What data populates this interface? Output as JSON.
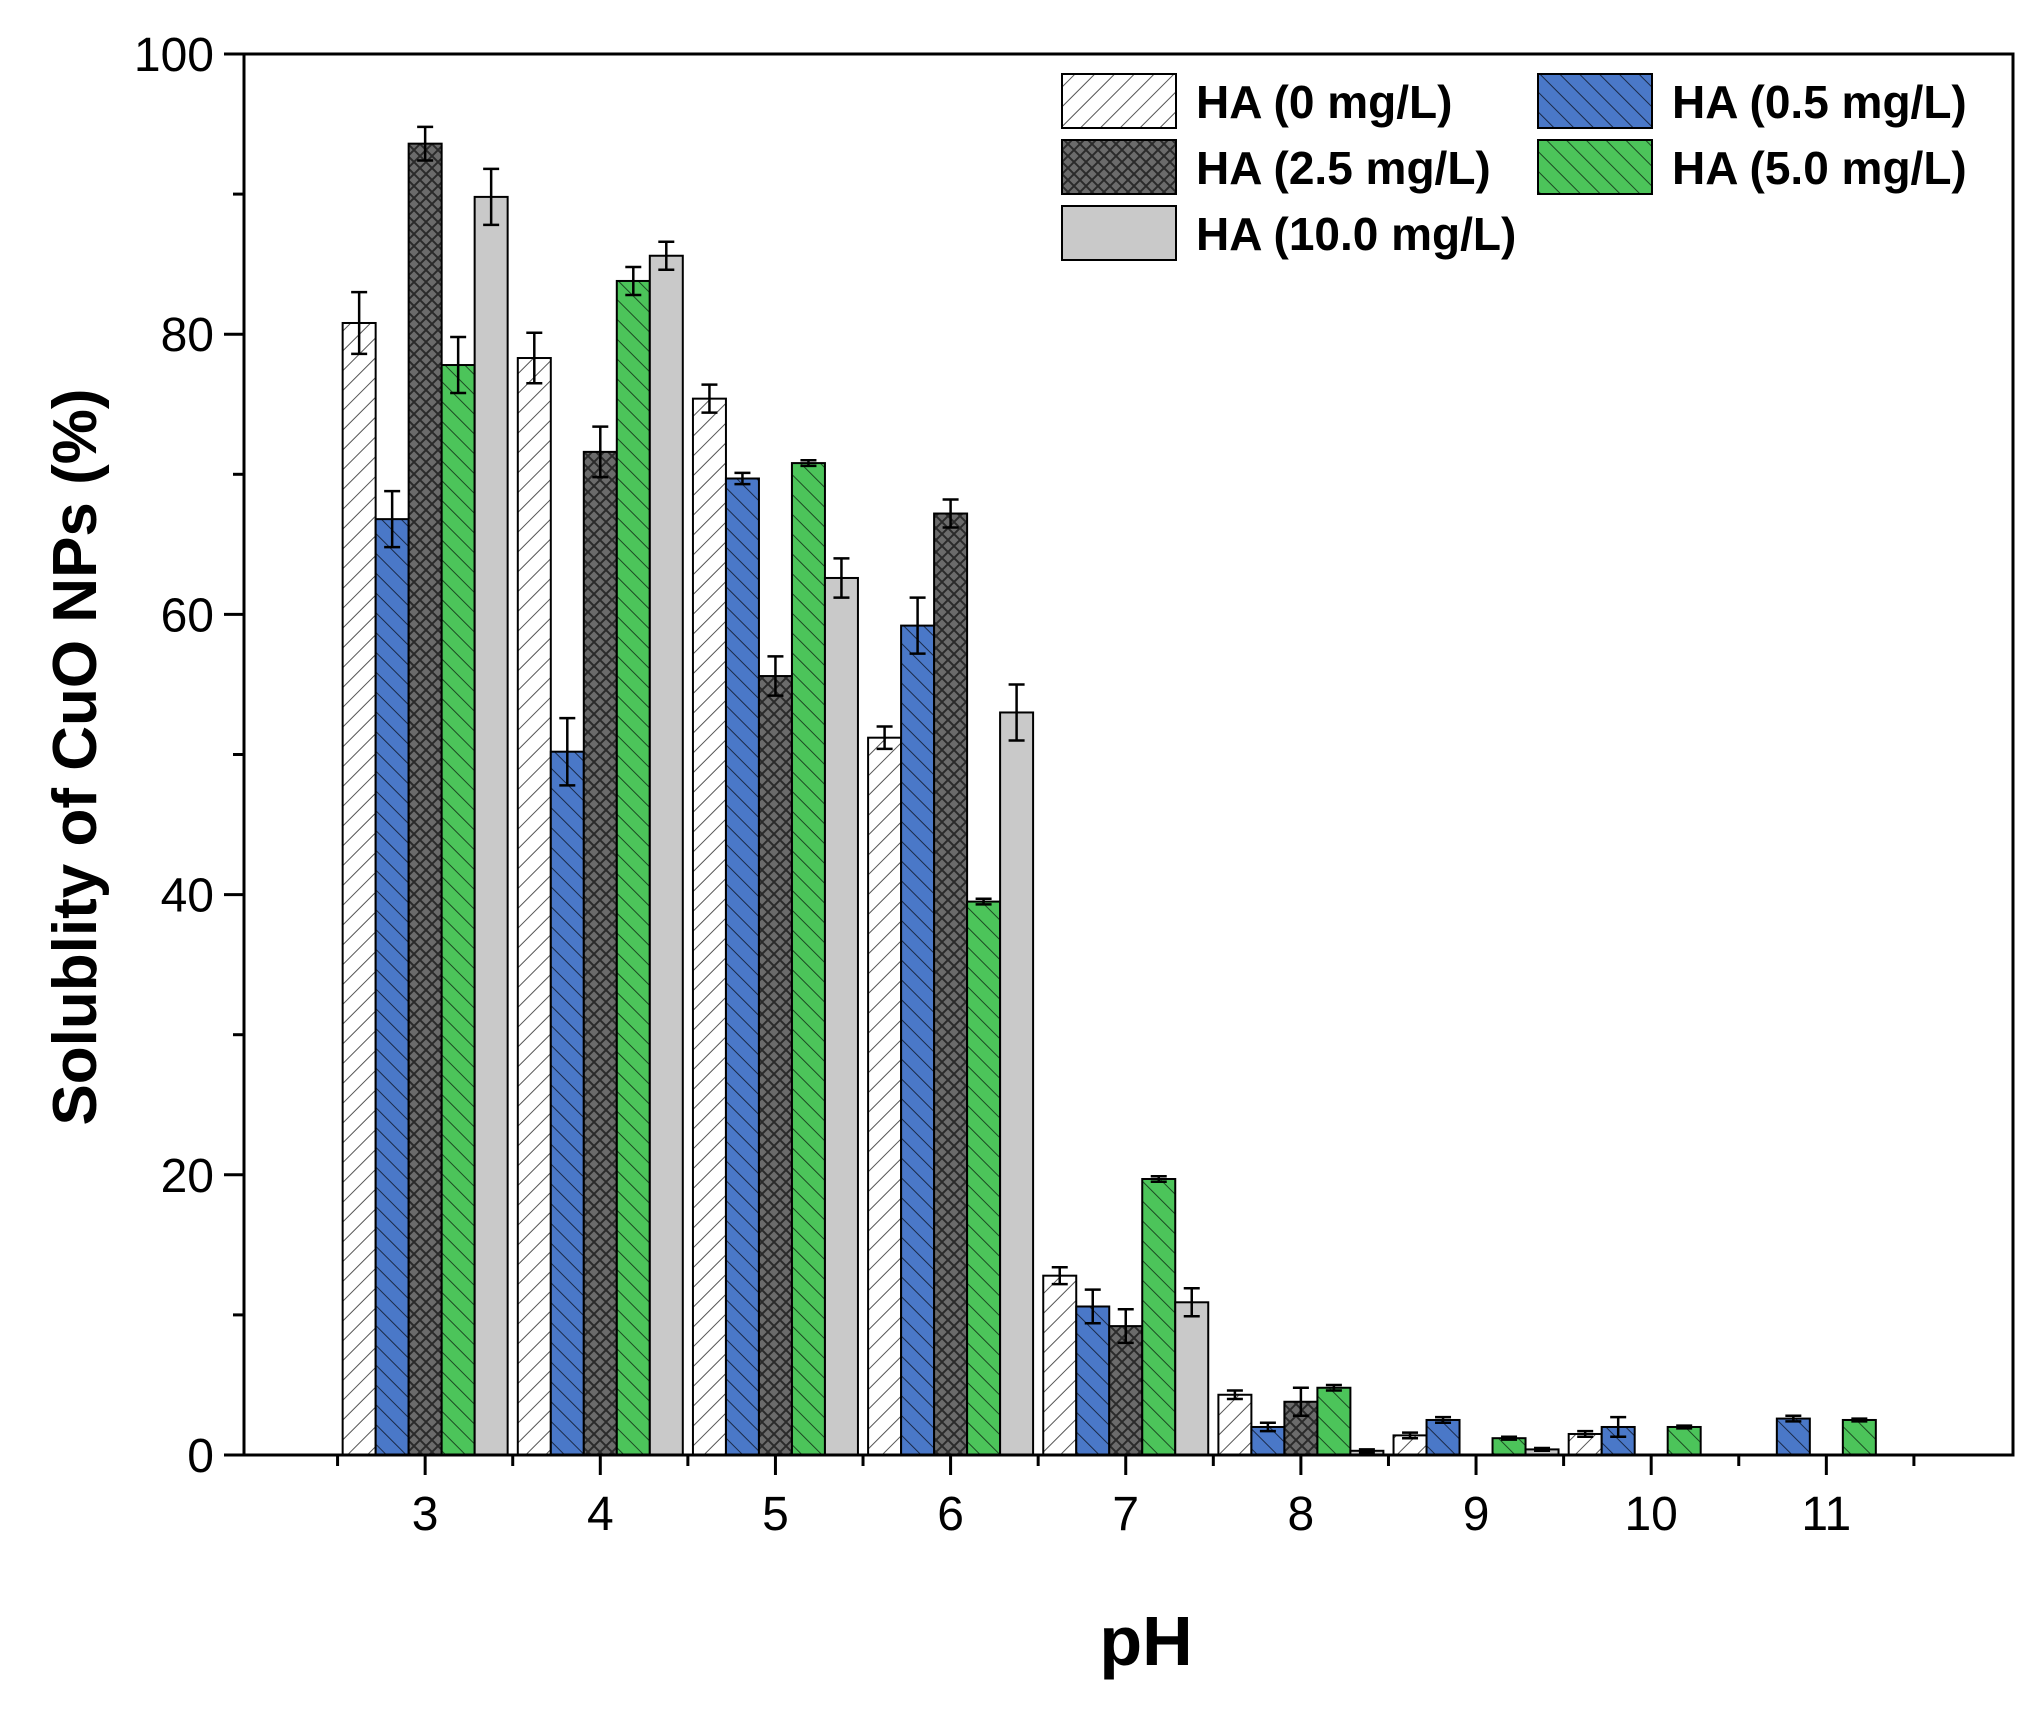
{
  "chart_data": {
    "type": "bar",
    "xlabel": "pH",
    "ylabel": "Solublity of CuO NPs (%)",
    "ylim": [
      0,
      100
    ],
    "y_major_ticks": [
      0,
      20,
      40,
      60,
      80,
      100
    ],
    "y_minor_ticks": [
      10,
      30,
      50,
      70,
      90
    ],
    "categories": [
      "3",
      "4",
      "5",
      "6",
      "7",
      "8",
      "9",
      "10",
      "11"
    ],
    "legend_position": "top-right",
    "series": [
      {
        "name": "HA (0 mg/L)",
        "color": "#ffffff",
        "pattern": "hatch-light",
        "values": [
          80.8,
          78.3,
          75.4,
          51.2,
          12.8,
          4.3,
          1.4,
          1.5,
          0
        ],
        "errors": [
          2.2,
          1.8,
          1.0,
          0.8,
          0.6,
          0.3,
          0.2,
          0.2,
          0
        ]
      },
      {
        "name": "HA (0.5 mg/L)",
        "color": "#4a78c8",
        "pattern": "hatch",
        "values": [
          66.8,
          50.2,
          69.7,
          59.2,
          10.6,
          2.0,
          2.5,
          2.0,
          2.6
        ],
        "errors": [
          2.0,
          2.4,
          0.4,
          2.0,
          1.2,
          0.3,
          0.2,
          0.7,
          0.2
        ]
      },
      {
        "name": "HA (2.5 mg/L)",
        "color": "#6b6b6b",
        "pattern": "crosshatch",
        "values": [
          93.6,
          71.6,
          55.6,
          67.2,
          9.2,
          3.8,
          0,
          0,
          0
        ],
        "errors": [
          1.2,
          1.8,
          1.4,
          1.0,
          1.2,
          1.0,
          0,
          0,
          0
        ]
      },
      {
        "name": "HA (5.0 mg/L)",
        "color": "#4cc45a",
        "pattern": "hatch",
        "values": [
          77.8,
          83.8,
          70.8,
          39.5,
          19.7,
          4.8,
          1.2,
          2.0,
          2.5
        ],
        "errors": [
          2.0,
          1.0,
          0.2,
          0.2,
          0.2,
          0.2,
          0.1,
          0.1,
          0.1
        ]
      },
      {
        "name": "HA (10.0 mg/L)",
        "color": "#c9c9c9",
        "pattern": "none",
        "values": [
          89.8,
          85.6,
          62.6,
          53.0,
          10.9,
          0.3,
          0.4,
          0,
          0
        ],
        "errors": [
          2.0,
          1.0,
          1.4,
          2.0,
          1.0,
          0.1,
          0.1,
          0,
          0
        ]
      }
    ]
  }
}
